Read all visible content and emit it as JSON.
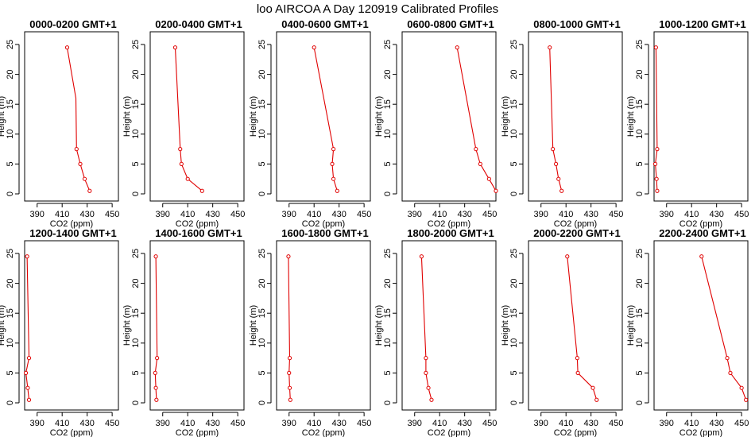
{
  "figure": {
    "title": "loo AIRCOA A  Day 120919  Calibrated Profiles"
  },
  "colors": {
    "profile": "#e00000",
    "axes": "#000000"
  },
  "chart_data": [
    {
      "type": "line",
      "title": "0000-0200 GMT+1",
      "xlabel": "CO2 (ppm)",
      "ylabel": "Height (m)",
      "xlim": [
        380,
        455
      ],
      "ylim": [
        0,
        25
      ],
      "xticks": [
        390,
        410,
        430,
        450
      ],
      "yticks": [
        0,
        5,
        10,
        15,
        20,
        25
      ],
      "series": [
        {
          "x": [
            414.0,
            421.0,
            421.5,
            424.5,
            428.0,
            432.0
          ],
          "y": [
            24.5,
            16.0,
            7.5,
            5.0,
            2.5,
            0.5
          ]
        }
      ]
    },
    {
      "type": "line",
      "title": "0200-0400 GMT+1",
      "xlabel": "CO2 (ppm)",
      "ylabel": "Height (m)",
      "xlim": [
        380,
        455
      ],
      "ylim": [
        0,
        25
      ],
      "xticks": [
        390,
        410,
        430,
        450
      ],
      "yticks": [
        0,
        5,
        10,
        15,
        20,
        25
      ],
      "series": [
        {
          "x": [
            400.0,
            404.0,
            405.0,
            410.0,
            421.5
          ],
          "y": [
            24.5,
            7.5,
            5.0,
            2.5,
            0.5
          ]
        }
      ]
    },
    {
      "type": "line",
      "title": "0400-0600 GMT+1",
      "xlabel": "CO2 (ppm)",
      "ylabel": "Height (m)",
      "xlim": [
        380,
        455
      ],
      "ylim": [
        0,
        25
      ],
      "xticks": [
        390,
        410,
        430,
        450
      ],
      "yticks": [
        0,
        5,
        10,
        15,
        20,
        25
      ],
      "series": [
        {
          "x": [
            410.0,
            425.5,
            424.5,
            425.5,
            428.5
          ],
          "y": [
            24.5,
            7.5,
            5.0,
            2.5,
            0.5
          ]
        }
      ]
    },
    {
      "type": "line",
      "title": "0600-0800 GMT+1",
      "xlabel": "CO2 (ppm)",
      "ylabel": "Height (m)",
      "xlim": [
        380,
        455
      ],
      "ylim": [
        0,
        25
      ],
      "xticks": [
        390,
        410,
        430,
        450
      ],
      "yticks": [
        0,
        5,
        10,
        15,
        20,
        25
      ],
      "series": [
        {
          "x": [
            424.0,
            439.0,
            442.5,
            449.5,
            455.0
          ],
          "y": [
            24.5,
            7.5,
            5.0,
            2.5,
            0.5
          ]
        }
      ]
    },
    {
      "type": "line",
      "title": "0800-1000 GMT+1",
      "xlabel": "CO2 (ppm)",
      "ylabel": "Height (m)",
      "xlim": [
        380,
        455
      ],
      "ylim": [
        0,
        25
      ],
      "xticks": [
        390,
        410,
        430,
        450
      ],
      "yticks": [
        0,
        5,
        10,
        15,
        20,
        25
      ],
      "series": [
        {
          "x": [
            397.0,
            399.5,
            402.0,
            404.0,
            406.5
          ],
          "y": [
            24.5,
            7.5,
            5.0,
            2.5,
            0.5
          ]
        }
      ]
    },
    {
      "type": "line",
      "title": "1000-1200 GMT+1",
      "xlabel": "CO2 (ppm)",
      "ylabel": "Height (m)",
      "xlim": [
        380,
        455
      ],
      "ylim": [
        0,
        25
      ],
      "xticks": [
        390,
        410,
        430,
        450
      ],
      "yticks": [
        0,
        5,
        10,
        15,
        20,
        25
      ],
      "series": [
        {
          "x": [
            381.5,
            382.5,
            381.0,
            382.0,
            382.5
          ],
          "y": [
            24.5,
            7.5,
            5.0,
            2.5,
            0.5
          ]
        }
      ]
    },
    {
      "type": "line",
      "title": "1200-1400 GMT+1",
      "xlabel": "CO2 (ppm)",
      "ylabel": "Height (m)",
      "xlim": [
        380,
        455
      ],
      "ylim": [
        0,
        25
      ],
      "xticks": [
        390,
        410,
        430,
        450
      ],
      "yticks": [
        0,
        5,
        10,
        15,
        20,
        25
      ],
      "series": [
        {
          "x": [
            382.0,
            383.5,
            381.0,
            382.5,
            383.5
          ],
          "y": [
            24.5,
            7.5,
            5.0,
            2.5,
            0.5
          ]
        }
      ]
    },
    {
      "type": "line",
      "title": "1400-1600 GMT+1",
      "xlabel": "CO2 (ppm)",
      "ylabel": "Height (m)",
      "xlim": [
        380,
        455
      ],
      "ylim": [
        0,
        25
      ],
      "xticks": [
        390,
        410,
        430,
        450
      ],
      "yticks": [
        0,
        5,
        10,
        15,
        20,
        25
      ],
      "series": [
        {
          "x": [
            384.5,
            385.5,
            384.0,
            384.5,
            385.0
          ],
          "y": [
            24.5,
            7.5,
            5.0,
            2.5,
            0.5
          ]
        }
      ]
    },
    {
      "type": "line",
      "title": "1600-1800 GMT+1",
      "xlabel": "CO2 (ppm)",
      "ylabel": "Height (m)",
      "xlim": [
        380,
        455
      ],
      "ylim": [
        0,
        25
      ],
      "xticks": [
        390,
        410,
        430,
        450
      ],
      "yticks": [
        0,
        5,
        10,
        15,
        20,
        25
      ],
      "series": [
        {
          "x": [
            389.5,
            390.5,
            390.0,
            390.5,
            391.0
          ],
          "y": [
            24.5,
            7.5,
            5.0,
            2.5,
            0.5
          ]
        }
      ]
    },
    {
      "type": "line",
      "title": "1800-2000 GMT+1",
      "xlabel": "CO2 (ppm)",
      "ylabel": "Height (m)",
      "xlim": [
        380,
        455
      ],
      "ylim": [
        0,
        25
      ],
      "xticks": [
        390,
        410,
        430,
        450
      ],
      "yticks": [
        0,
        5,
        10,
        15,
        20,
        25
      ],
      "series": [
        {
          "x": [
            395.5,
            399.0,
            399.0,
            401.0,
            403.5
          ],
          "y": [
            24.5,
            7.5,
            5.0,
            2.5,
            0.5
          ]
        }
      ]
    },
    {
      "type": "line",
      "title": "2000-2200 GMT+1",
      "xlabel": "CO2 (ppm)",
      "ylabel": "Height (m)",
      "xlim": [
        380,
        455
      ],
      "ylim": [
        0,
        25
      ],
      "xticks": [
        390,
        410,
        430,
        450
      ],
      "yticks": [
        0,
        5,
        10,
        15,
        20,
        25
      ],
      "series": [
        {
          "x": [
            411.0,
            419.0,
            419.5,
            431.5,
            434.5
          ],
          "y": [
            24.5,
            7.5,
            5.0,
            2.5,
            0.5
          ]
        }
      ]
    },
    {
      "type": "line",
      "title": "2200-2400 GMT+1",
      "xlabel": "CO2 (ppm)",
      "ylabel": "Height (m)",
      "xlim": [
        380,
        455
      ],
      "ylim": [
        0,
        25
      ],
      "xticks": [
        390,
        410,
        430,
        450
      ],
      "yticks": [
        0,
        5,
        10,
        15,
        20,
        25
      ],
      "series": [
        {
          "x": [
            418.0,
            438.5,
            441.0,
            450.0,
            453.5
          ],
          "y": [
            24.5,
            7.5,
            5.0,
            2.5,
            0.5
          ]
        }
      ]
    }
  ]
}
